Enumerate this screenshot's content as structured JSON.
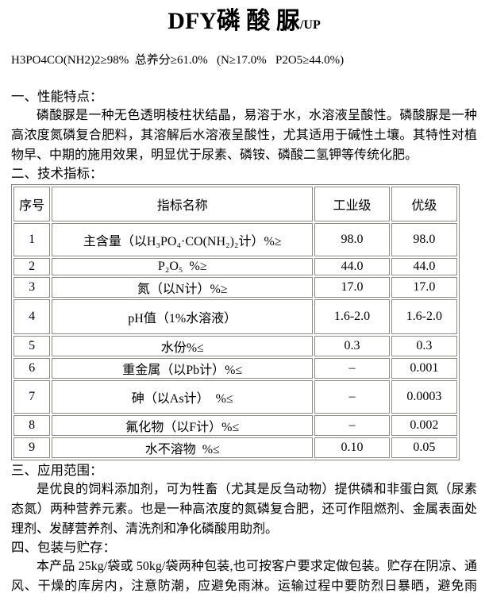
{
  "title": {
    "main": "DFY磷 酸 脲",
    "suffix": "/UP"
  },
  "spec_line": "H3PO4CO(NH2)2≥98%  总养分≥61.0%   (N≥17.0%   P2O5≥44.0%)",
  "sections": {
    "performance": {
      "heading": "一、性能特点：",
      "body": "磷酸脲是一种无色透明棱柱状结晶，易溶于水，水溶液呈酸性。磷酸脲是一种高浓度氮磷复合肥料，其溶解后水溶液呈酸性，尤其适用于碱性土壤。其特性对植物早、中期的施用效果，明显优于尿素、磷铵、磷酸二氢钾等传统化肥。"
    },
    "technical": {
      "heading": "二、技术指标："
    },
    "application": {
      "heading": "三、应用范围：",
      "body": "是优良的饲料添加剂，可为牲畜（尤其是反刍动物）提供磷和非蛋白氮（尿素态氮）两种营养元素。也是一种高浓度的氮磷复合肥，还可作阻燃剂、金属表面处理剂、发酵营养剂、清洗剂和净化磷酸用助剂。"
    },
    "packaging": {
      "heading": "四、包装与贮存：",
      "body": "本产品 25kg/袋或 50kg/袋两种包装,也可按客户要求定做包装。贮存在阴凉、通风、干燥的库房内，注意防潮，应避免雨淋。运输过程中要防烈日暴晒，避免雨淋。"
    }
  },
  "table": {
    "headers": [
      "序号",
      "指标名称",
      "工业级",
      "优级"
    ],
    "rows": [
      [
        "1",
        "主含量（以H₃PO₄·CO(NH₂)₂计）%≥",
        "98.0",
        "98.0"
      ],
      [
        "2",
        "P₂O₅  %≥",
        "44.0",
        "44.0"
      ],
      [
        "3",
        "氮（以N计）%≥",
        "17.0",
        "17.0"
      ],
      [
        "4",
        "pH值（1%水溶液）",
        "1.6-2.0",
        "1.6-2.0"
      ],
      [
        "5",
        "水份%≤",
        "0.3",
        "0.3"
      ],
      [
        "6",
        "重金属（以Pb计）%≤",
        "–",
        "0.001"
      ],
      [
        "7",
        "砷（以As计）  %≤",
        "–",
        "0.0003"
      ],
      [
        "8",
        "氟化物（以F计）%≤",
        "–",
        "0.002"
      ],
      [
        "9",
        "水不溶物  %≤",
        "0.10",
        "0.05"
      ]
    ]
  }
}
